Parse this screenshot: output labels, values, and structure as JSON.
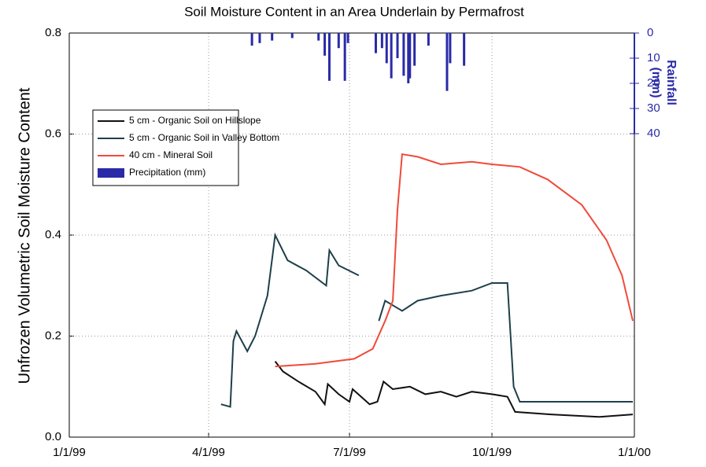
{
  "chart_data": {
    "type": "line",
    "title": "Soil Moisture Content in an Area Underlain by Permafrost",
    "y_label": "Unfrozen Volumetric Soil Moisture Content",
    "y2_label": [
      "Rainfall",
      "(mm)"
    ],
    "xlim": [
      "1999-01-01",
      "2000-01-01"
    ],
    "xticks": [
      {
        "value": "1999-01-01",
        "label": "1/1/99"
      },
      {
        "value": "1999-04-01",
        "label": "4/1/99"
      },
      {
        "value": "1999-07-01",
        "label": "7/1/99"
      },
      {
        "value": "1999-10-01",
        "label": "10/1/99"
      },
      {
        "value": "2000-01-01",
        "label": "1/1/00"
      }
    ],
    "ylim": [
      0,
      0.8
    ],
    "yticks": [
      {
        "value": 0,
        "label": "0.0"
      },
      0.2,
      0.4,
      0.6,
      0.8
    ],
    "y2lim": [
      0,
      40
    ],
    "y2ticks": [
      0,
      10,
      20,
      30,
      40
    ],
    "y2_inverted": true,
    "grid": true,
    "legend": "upper left",
    "series": [
      {
        "name": "5 cm - Organic Soil on Hillslope",
        "type": "line",
        "color": "#111111",
        "x": [
          "1999-05-14",
          "1999-05-19",
          "1999-05-29",
          "1999-06-09",
          "1999-06-15",
          "1999-06-17",
          "1999-06-24",
          "1999-07-01",
          "1999-07-03",
          "1999-07-14",
          "1999-07-19",
          "1999-07-23",
          "1999-07-29",
          "1999-08-09",
          "1999-08-19",
          "1999-08-29",
          "1999-09-08",
          "1999-09-18",
          "1999-10-01",
          "1999-10-11",
          "1999-10-16",
          "1999-11-08",
          "1999-12-09",
          "1999-12-31"
        ],
        "values": [
          0.15,
          0.13,
          0.11,
          0.09,
          0.065,
          0.105,
          0.085,
          0.07,
          0.095,
          0.065,
          0.07,
          0.11,
          0.095,
          0.1,
          0.085,
          0.09,
          0.08,
          0.09,
          0.085,
          0.08,
          0.05,
          0.045,
          0.04,
          0.045
        ]
      },
      {
        "name": "5 cm - Organic Soil in Valley Bottom",
        "type": "line",
        "color": "#1f3f4a",
        "x": [
          "1999-04-09",
          "1999-04-15",
          "1999-04-17",
          "1999-04-19",
          "1999-04-26",
          "1999-05-01",
          "1999-05-09",
          "1999-05-14",
          "1999-05-22",
          "1999-06-03",
          "1999-06-16",
          "1999-06-18",
          "1999-06-24",
          "1999-07-07",
          "1999-07-14",
          "1999-07-20",
          "1999-07-24",
          "1999-08-04",
          "1999-08-14",
          "1999-08-29",
          "1999-09-18",
          "1999-10-01",
          "1999-10-11",
          "1999-10-15",
          "1999-10-19",
          "1999-12-31"
        ],
        "values": [
          0.065,
          0.06,
          0.19,
          0.21,
          0.17,
          0.2,
          0.28,
          0.4,
          0.35,
          0.33,
          0.3,
          0.37,
          0.34,
          0.32,
          null,
          0.23,
          0.27,
          0.25,
          0.27,
          0.28,
          0.29,
          0.305,
          0.305,
          0.1,
          0.07,
          0.07
        ]
      },
      {
        "name": "40 cm - Mineral Soil",
        "type": "line",
        "color": "#f04a3a",
        "x": [
          "1999-05-14",
          "1999-06-09",
          "1999-07-04",
          "1999-07-16",
          "1999-07-24",
          "1999-07-29",
          "1999-08-01",
          "1999-08-04",
          "1999-08-14",
          "1999-08-29",
          "1999-09-18",
          "1999-10-01",
          "1999-10-19",
          "1999-11-06",
          "1999-11-28",
          "1999-12-14",
          "1999-12-24",
          "1999-12-31"
        ],
        "values": [
          0.14,
          0.145,
          0.155,
          0.175,
          0.23,
          0.27,
          0.45,
          0.56,
          0.555,
          0.54,
          0.545,
          0.54,
          0.535,
          0.51,
          0.46,
          0.39,
          0.32,
          0.23
        ]
      },
      {
        "name": "Precipitation (mm)",
        "type": "bar",
        "axis": "y2",
        "color": "#2a2aa8",
        "x": [
          "1999-04-29",
          "1999-05-04",
          "1999-05-12",
          "1999-05-25",
          "1999-06-11",
          "1999-06-15",
          "1999-06-18",
          "1999-06-24",
          "1999-06-28",
          "1999-06-30",
          "1999-07-18",
          "1999-07-22",
          "1999-07-25",
          "1999-07-28",
          "1999-08-01",
          "1999-08-05",
          "1999-08-08",
          "1999-08-09",
          "1999-08-12",
          "1999-08-21",
          "1999-09-02",
          "1999-09-04",
          "1999-09-13"
        ],
        "values": [
          5,
          4,
          3,
          2,
          3,
          9,
          19,
          6,
          19,
          4,
          8,
          6,
          12,
          18,
          10,
          17,
          20,
          18,
          13,
          5,
          23,
          12,
          13
        ]
      }
    ]
  }
}
